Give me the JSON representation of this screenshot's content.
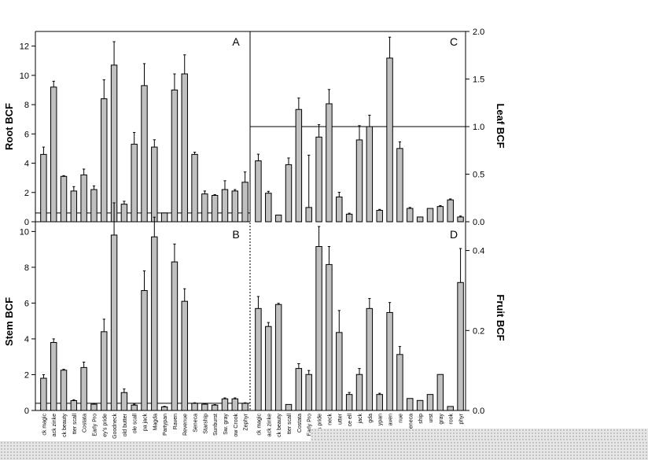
{
  "chart_data": [
    {
      "panel": "A",
      "type": "bar",
      "ylabel": "Root BCF",
      "ylim": [
        0,
        13
      ],
      "yticks": [
        0,
        2,
        4,
        6,
        8,
        10,
        12
      ],
      "reference_line": 0.6,
      "values": [
        4.6,
        9.2,
        3.1,
        2.1,
        3.2,
        2.2,
        8.4,
        10.7,
        1.2,
        5.3,
        9.3,
        5.1,
        0.6,
        9.0,
        10.1,
        4.6,
        1.9,
        1.8,
        2.2,
        2.1,
        2.7
      ],
      "errors": [
        0.5,
        0.4,
        0.05,
        0.3,
        0.4,
        0.25,
        1.3,
        1.6,
        0.2,
        0.8,
        1.5,
        0.5,
        0.0,
        1.1,
        1.3,
        0.15,
        0.2,
        0.05,
        0.6,
        0.1,
        0.7
      ]
    },
    {
      "panel": "B",
      "type": "bar",
      "ylabel": "Stem BCF",
      "ylim": [
        0,
        10.5
      ],
      "yticks": [
        0,
        2,
        4,
        6,
        8,
        10
      ],
      "reference_line": 0.4,
      "values": [
        1.8,
        3.8,
        2.25,
        0.55,
        2.4,
        0.35,
        4.4,
        9.8,
        1.0,
        0.3,
        6.7,
        9.7,
        0.2,
        8.3,
        6.1,
        0.4,
        0.35,
        0.3,
        0.65,
        0.65,
        0.4
      ],
      "errors": [
        0.2,
        0.2,
        0.05,
        0.05,
        0.3,
        0.03,
        0.7,
        1.8,
        0.2,
        0.05,
        1.1,
        1.1,
        0.03,
        1.0,
        0.7,
        0.03,
        0.03,
        0.03,
        0.05,
        0.05,
        0.03
      ]
    },
    {
      "panel": "C",
      "type": "bar",
      "ylabel": "Leaf BCF",
      "ylim": [
        0,
        2.0
      ],
      "yticks": [
        "0.0",
        "0.5",
        "1.0",
        "1.5",
        "2.0"
      ],
      "yticks_num": [
        0,
        0.5,
        1.0,
        1.5,
        2.0
      ],
      "reference_line": 1.0,
      "values": [
        0.64,
        0.3,
        0.07,
        0.6,
        1.18,
        0.15,
        0.89,
        1.24,
        0.26,
        0.08,
        0.86,
        1.0,
        0.12,
        1.72,
        0.77,
        0.14,
        0.05,
        0.14,
        0.16,
        0.23,
        0.05
      ],
      "errors": [
        0.07,
        0.02,
        0.0,
        0.07,
        0.12,
        0.55,
        0.13,
        0.15,
        0.05,
        0.01,
        0.15,
        0.12,
        0.01,
        0.22,
        0.07,
        0.01,
        0.0,
        0.0,
        0.01,
        0.01,
        0.01
      ]
    },
    {
      "panel": "D",
      "type": "bar",
      "ylabel": "Fruit BCF",
      "ylim": [
        0,
        0.47
      ],
      "yticks": [
        "0.0",
        "0.2",
        "0.4"
      ],
      "yticks_num": [
        0,
        0.2,
        0.4
      ],
      "values": [
        0.255,
        0.21,
        0.265,
        0.015,
        0.105,
        0.09,
        0.41,
        0.365,
        0.195,
        0.04,
        0.09,
        0.255,
        0.04,
        0.245,
        0.14,
        0.03,
        0.025,
        0.04,
        0.09,
        0.01,
        0.32
      ],
      "errors": [
        0.03,
        0.01,
        0.003,
        0.0,
        0.012,
        0.01,
        0.05,
        0.045,
        0.055,
        0.005,
        0.015,
        0.025,
        0.003,
        0.025,
        0.02,
        0.0,
        0.0,
        0.0,
        0.0,
        0.0,
        0.085
      ]
    }
  ],
  "x_labels_left": [
    "ck magic",
    "ack zinke",
    "ck beauty",
    "tter scall",
    "Costata",
    "Early Pro",
    "ey's pride",
    "Goodneck",
    "old butter",
    "ole scall",
    "pa jack",
    "Magda",
    "Partypan",
    "Raven",
    "Revenue",
    "Seneca",
    "Starship",
    "Sunburst",
    "Sw. gray",
    "ow Crook",
    "Zephyr"
  ],
  "x_labels_right": [
    "ck magic",
    "ack zinke",
    "ck beauty",
    "tter scall",
    "Costata",
    "Early Pro",
    "ey's pride",
    "neck",
    "utter",
    "ce ell",
    "jack",
    "gda",
    "ypan",
    "aven",
    "nue",
    "eneca",
    "ship",
    "urst",
    "gray",
    "rook",
    "phyr"
  ],
  "colors": {
    "bar_fill": "#c0c0c0",
    "stroke": "#000000",
    "dots": "#b8b8b8"
  }
}
